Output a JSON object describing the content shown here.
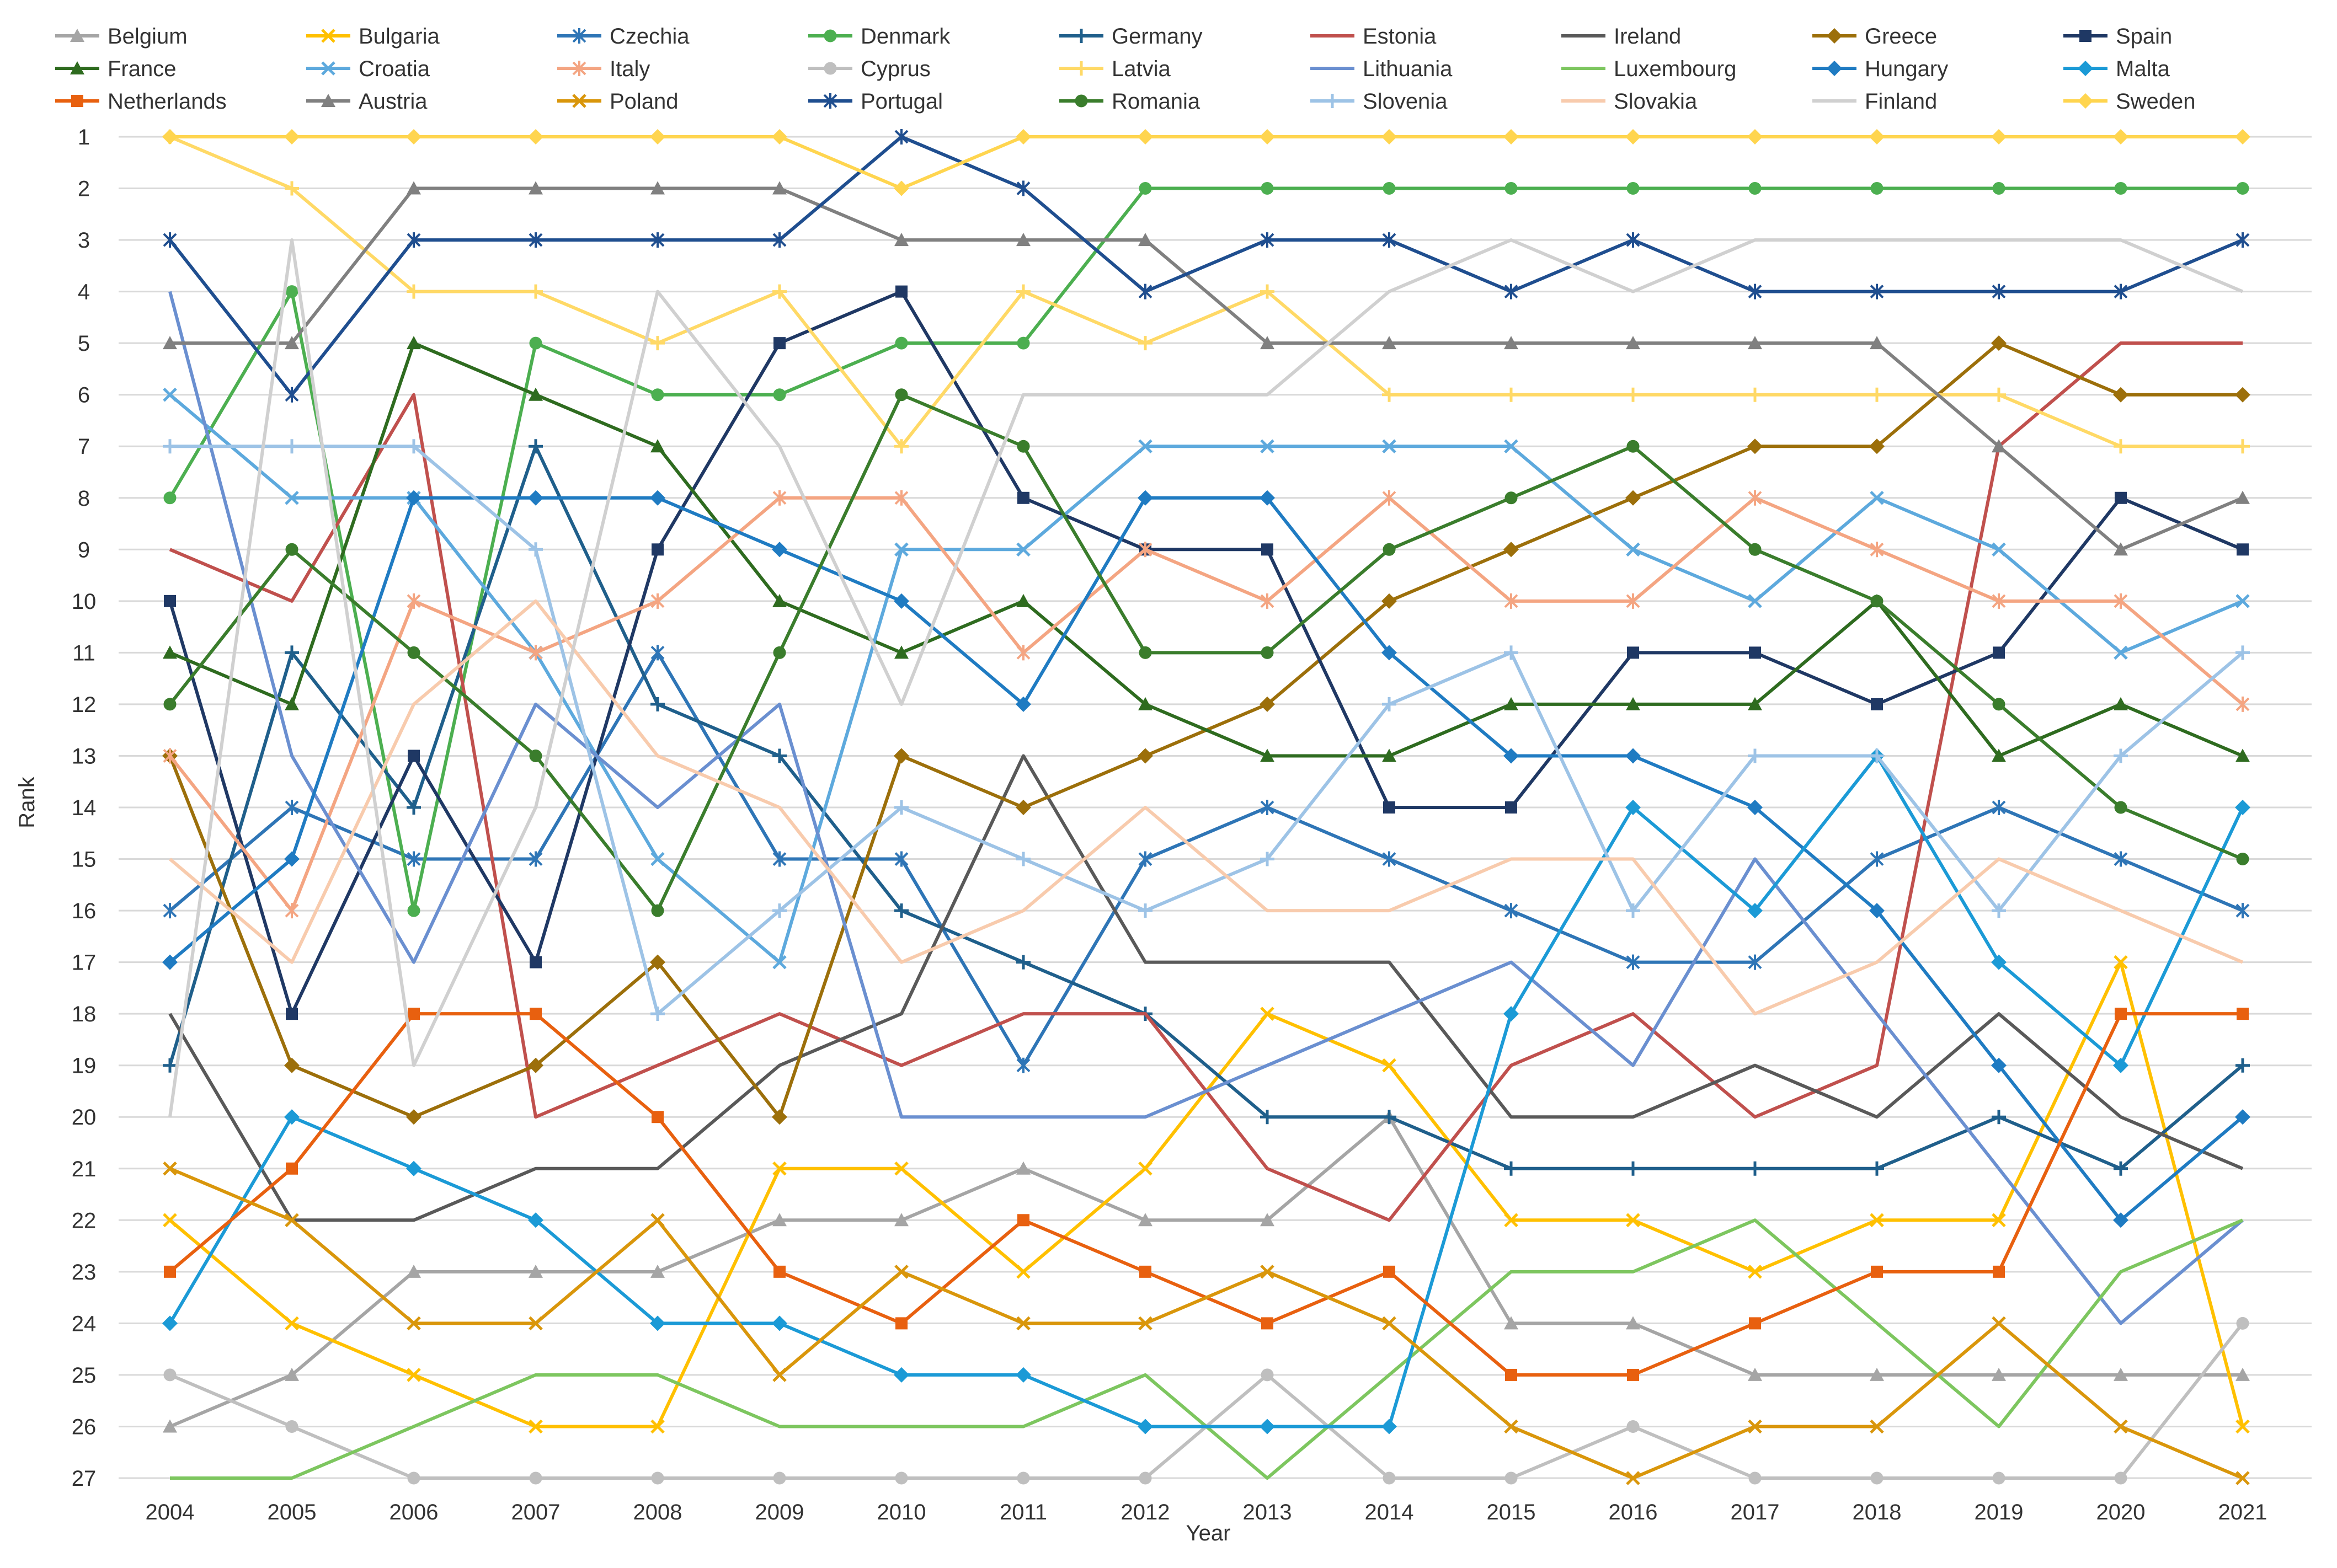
{
  "chart_data": {
    "type": "line",
    "title": "",
    "xlabel": "Year",
    "ylabel": "Rank",
    "ylim": [
      1,
      27
    ],
    "y_inverted": true,
    "x": [
      2004,
      2005,
      2006,
      2007,
      2008,
      2009,
      2010,
      2011,
      2012,
      2013,
      2014,
      2015,
      2016,
      2017,
      2018,
      2019,
      2020,
      2021
    ],
    "y_ticks": [
      1,
      2,
      3,
      4,
      5,
      6,
      7,
      8,
      9,
      10,
      11,
      12,
      13,
      14,
      15,
      16,
      17,
      18,
      19,
      20,
      21,
      22,
      23,
      24,
      25,
      26,
      27
    ],
    "legend_position": "top",
    "series": [
      {
        "name": "Belgium",
        "color": "#A5A5A5",
        "marker": "triangle",
        "values": [
          26,
          25,
          23,
          23,
          23,
          22,
          22,
          21,
          22,
          22,
          20,
          24,
          24,
          25,
          25,
          25,
          25,
          25
        ]
      },
      {
        "name": "Bulgaria",
        "color": "#FFC000",
        "marker": "x",
        "values": [
          22,
          24,
          25,
          26,
          26,
          21,
          21,
          23,
          21,
          18,
          19,
          22,
          22,
          23,
          22,
          22,
          17,
          26
        ]
      },
      {
        "name": "Czechia",
        "color": "#2E75B6",
        "marker": "star",
        "values": [
          16,
          14,
          15,
          15,
          11,
          15,
          15,
          19,
          15,
          14,
          15,
          16,
          17,
          17,
          15,
          14,
          15,
          16
        ]
      },
      {
        "name": "Denmark",
        "color": "#4CAF50",
        "marker": "circle",
        "values": [
          8,
          4,
          16,
          5,
          6,
          6,
          5,
          5,
          2,
          2,
          2,
          2,
          2,
          2,
          2,
          2,
          2,
          2
        ]
      },
      {
        "name": "Germany",
        "color": "#1F5F8B",
        "marker": "plus",
        "values": [
          19,
          11,
          14,
          7,
          12,
          13,
          16,
          17,
          18,
          20,
          20,
          21,
          21,
          21,
          21,
          20,
          21,
          19
        ]
      },
      {
        "name": "Estonia",
        "color": "#C0504D",
        "marker": "none",
        "values": [
          9,
          10,
          6,
          20,
          19,
          18,
          19,
          18,
          18,
          21,
          22,
          19,
          18,
          20,
          19,
          7,
          5,
          5
        ]
      },
      {
        "name": "Ireland",
        "color": "#595959",
        "marker": "none",
        "values": [
          18,
          22,
          22,
          21,
          21,
          19,
          18,
          13,
          17,
          17,
          17,
          20,
          20,
          19,
          20,
          18,
          20,
          21
        ]
      },
      {
        "name": "Greece",
        "color": "#9C6F0A",
        "marker": "diamond",
        "values": [
          13,
          19,
          20,
          19,
          17,
          20,
          13,
          14,
          13,
          12,
          10,
          9,
          8,
          7,
          7,
          5,
          6,
          6
        ]
      },
      {
        "name": "Spain",
        "color": "#1F3864",
        "marker": "square",
        "values": [
          10,
          18,
          13,
          17,
          9,
          5,
          4,
          8,
          9,
          9,
          14,
          14,
          11,
          11,
          12,
          11,
          8,
          9
        ]
      },
      {
        "name": "France",
        "color": "#2E6B1F",
        "marker": "triangle",
        "values": [
          11,
          12,
          5,
          6,
          7,
          10,
          11,
          10,
          12,
          13,
          13,
          12,
          12,
          12,
          10,
          13,
          12,
          13
        ]
      },
      {
        "name": "Croatia",
        "color": "#5DA9DD",
        "marker": "x",
        "values": [
          6,
          8,
          8,
          11,
          15,
          17,
          9,
          9,
          7,
          7,
          7,
          7,
          9,
          10,
          8,
          9,
          11,
          10
        ]
      },
      {
        "name": "Italy",
        "color": "#F4A582",
        "marker": "star",
        "values": [
          13,
          16,
          10,
          11,
          10,
          8,
          8,
          11,
          9,
          10,
          8,
          10,
          10,
          8,
          9,
          10,
          10,
          12
        ]
      },
      {
        "name": "Cyprus",
        "color": "#BFBFBF",
        "marker": "circle",
        "values": [
          25,
          26,
          27,
          27,
          27,
          27,
          27,
          27,
          27,
          25,
          27,
          27,
          26,
          27,
          27,
          27,
          27,
          24
        ]
      },
      {
        "name": "Latvia",
        "color": "#FFD966",
        "marker": "plus",
        "values": [
          1,
          2,
          4,
          4,
          5,
          4,
          7,
          4,
          5,
          4,
          6,
          6,
          6,
          6,
          6,
          6,
          7,
          7
        ]
      },
      {
        "name": "Lithuania",
        "color": "#6A8FD0",
        "marker": "none",
        "values": [
          4,
          13,
          17,
          12,
          14,
          12,
          20,
          20,
          20,
          19,
          18,
          17,
          19,
          15,
          18,
          21,
          24,
          22
        ]
      },
      {
        "name": "Luxembourg",
        "color": "#7DC65F",
        "marker": "none",
        "values": [
          27,
          27,
          26,
          25,
          25,
          26,
          26,
          26,
          25,
          27,
          25,
          23,
          23,
          22,
          24,
          26,
          23,
          22
        ]
      },
      {
        "name": "Hungary",
        "color": "#1F7BC2",
        "marker": "diamond",
        "values": [
          17,
          15,
          8,
          8,
          8,
          9,
          10,
          12,
          8,
          8,
          11,
          13,
          13,
          14,
          16,
          19,
          22,
          20
        ]
      },
      {
        "name": "Malta",
        "color": "#1B9AD6",
        "marker": "diamond",
        "values": [
          24,
          20,
          21,
          22,
          24,
          24,
          25,
          25,
          26,
          26,
          26,
          18,
          14,
          16,
          13,
          17,
          19,
          14
        ]
      },
      {
        "name": "Netherlands",
        "color": "#E8600F",
        "marker": "square",
        "values": [
          23,
          21,
          18,
          18,
          20,
          23,
          24,
          22,
          23,
          24,
          23,
          25,
          25,
          24,
          23,
          23,
          18,
          18
        ]
      },
      {
        "name": "Austria",
        "color": "#808080",
        "marker": "triangle",
        "values": [
          5,
          5,
          2,
          2,
          2,
          2,
          3,
          3,
          3,
          5,
          5,
          5,
          5,
          5,
          5,
          7,
          9,
          8
        ]
      },
      {
        "name": "Poland",
        "color": "#D9960B",
        "marker": "x",
        "values": [
          21,
          22,
          24,
          24,
          22,
          25,
          23,
          24,
          24,
          23,
          24,
          26,
          27,
          26,
          26,
          24,
          26,
          27
        ]
      },
      {
        "name": "Portugal",
        "color": "#1F4E8F",
        "marker": "star",
        "values": [
          3,
          6,
          3,
          3,
          3,
          3,
          1,
          2,
          4,
          3,
          3,
          4,
          3,
          4,
          4,
          4,
          4,
          3
        ]
      },
      {
        "name": "Romania",
        "color": "#3A7D2C",
        "marker": "circle",
        "values": [
          12,
          9,
          11,
          13,
          16,
          11,
          6,
          7,
          11,
          11,
          9,
          8,
          7,
          9,
          10,
          12,
          14,
          15
        ]
      },
      {
        "name": "Slovenia",
        "color": "#9DC3E6",
        "marker": "plus",
        "values": [
          7,
          7,
          7,
          9,
          18,
          16,
          14,
          15,
          16,
          15,
          12,
          11,
          16,
          13,
          13,
          16,
          13,
          11
        ]
      },
      {
        "name": "Slovakia",
        "color": "#F8CBAD",
        "marker": "none",
        "values": [
          15,
          17,
          12,
          10,
          13,
          14,
          17,
          16,
          14,
          16,
          16,
          15,
          15,
          18,
          17,
          15,
          16,
          17
        ]
      },
      {
        "name": "Finland",
        "color": "#D0D0D0",
        "marker": "none",
        "values": [
          20,
          3,
          19,
          14,
          4,
          7,
          12,
          6,
          6,
          6,
          4,
          3,
          4,
          3,
          3,
          3,
          3,
          4
        ]
      },
      {
        "name": "Sweden",
        "color": "#FFD54F",
        "marker": "diamond",
        "values": [
          1,
          1,
          1,
          1,
          1,
          1,
          2,
          1,
          1,
          1,
          1,
          1,
          1,
          1,
          1,
          1,
          1,
          1
        ]
      }
    ]
  }
}
